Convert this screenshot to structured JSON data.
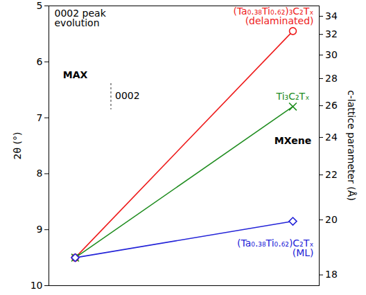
{
  "chart_data": {
    "type": "line",
    "ylabel": "2θ (°)",
    "y2label": "c-lattice parameter (Å)",
    "annotations": [
      "0002 peak\nevolution",
      "0002"
    ],
    "categories": [
      "MAX",
      "MXene"
    ],
    "tick_labels": "y",
    "ylim": [
      5,
      10
    ],
    "yticks": [
      5,
      6,
      7,
      8,
      9,
      10
    ],
    "y2lim": [
      35.3,
      17.7
    ],
    "y2ticks": [
      18,
      20,
      22,
      24,
      26,
      28,
      30,
      32,
      34
    ],
    "series": [
      {
        "name": "(Ta₀.₃₈Ti₀.₆₂)₃C₂Tₓ\n(delaminated)",
        "color": "#ee1c1c",
        "marker": "circle",
        "values": [
          9.5,
          5.45
        ]
      },
      {
        "name": "Ti₃C₂Tₓ",
        "color": "#1e8c1e",
        "marker": "x",
        "values": [
          9.5,
          6.8
        ]
      },
      {
        "name": "(Ta₀.₃₈Ti₀.₆₂)C₂Tₓ\n(ML)",
        "color": "#2323d8",
        "marker": "diamond",
        "values": [
          9.5,
          8.85
        ]
      }
    ]
  }
}
